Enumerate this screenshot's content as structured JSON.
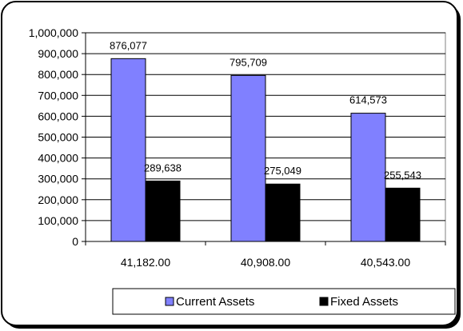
{
  "chart_data": {
    "type": "bar",
    "categories": [
      "41,182.00",
      "40,908.00",
      "40,543.00"
    ],
    "series": [
      {
        "name": "Current Assets",
        "values": [
          876077,
          795709,
          614573
        ],
        "labels": [
          "876,077",
          "795,709",
          "614,573"
        ],
        "color": "#8080ff"
      },
      {
        "name": "Fixed Assets",
        "values": [
          289638,
          275049,
          255543
        ],
        "labels": [
          "289,638",
          "275,049",
          "255,543"
        ],
        "color": "#000000"
      }
    ],
    "ylim": [
      0,
      1000000
    ],
    "ytick_step": 100000,
    "ytick_labels": [
      "0",
      "100,000",
      "200,000",
      "300,000",
      "400,000",
      "500,000",
      "600,000",
      "700,000",
      "800,000",
      "900,000",
      "1,000,000"
    ],
    "grid": true,
    "legend_position": "bottom-right",
    "title": "",
    "xlabel": "",
    "ylabel": ""
  }
}
